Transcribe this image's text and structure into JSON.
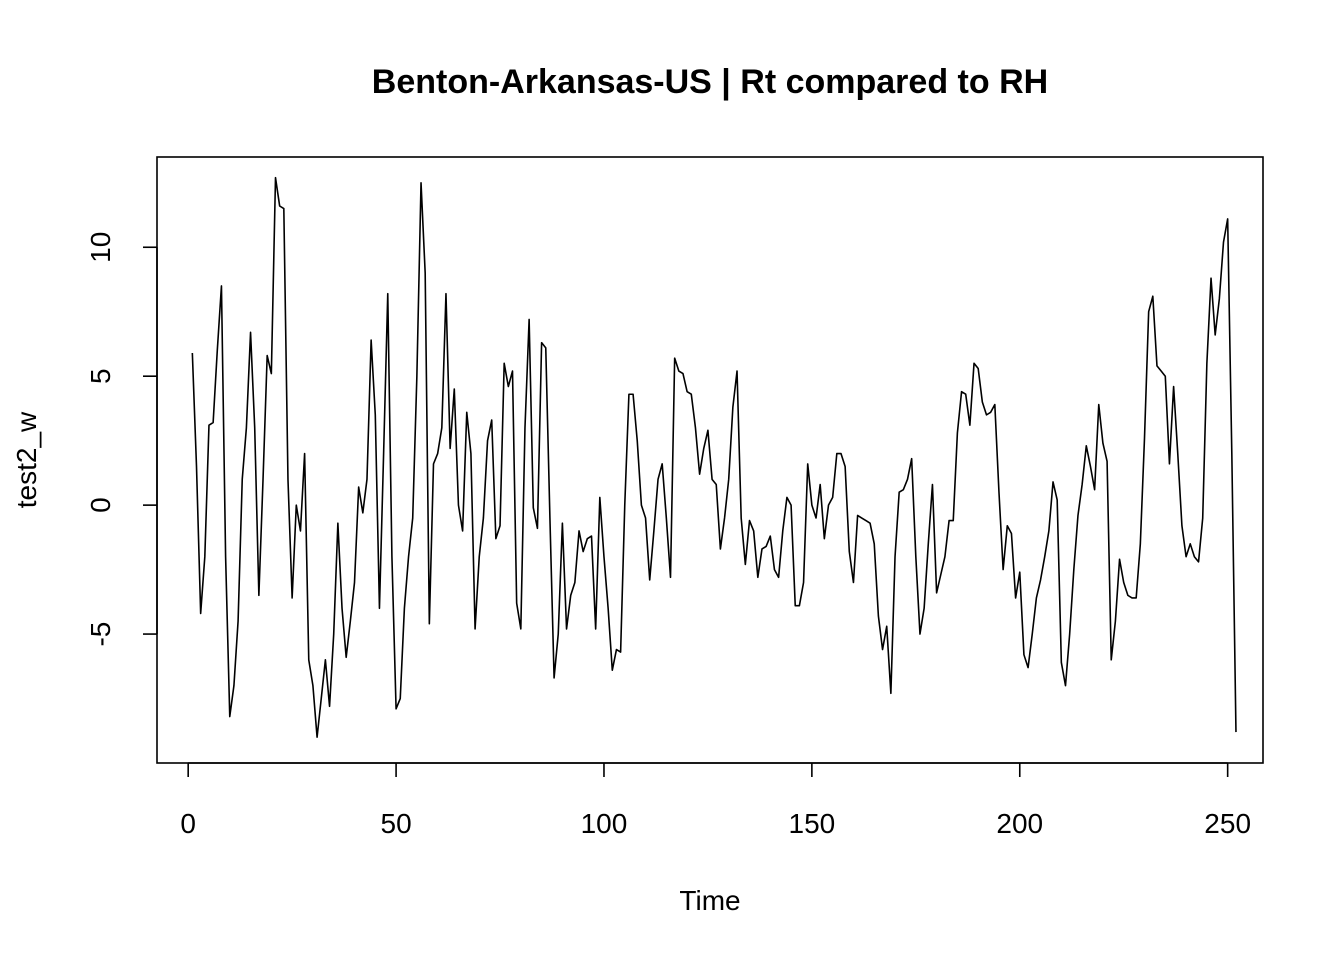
{
  "chart_data": {
    "type": "line",
    "title": "Benton-Arkansas-US | Rt compared to RH",
    "xlabel": "Time",
    "ylabel": "test2_w",
    "xlim": [
      -7.5,
      258.5
    ],
    "ylim": [
      -10,
      13.5
    ],
    "xticks": [
      0,
      50,
      100,
      150,
      200,
      250
    ],
    "yticks": [
      -5,
      0,
      5,
      10
    ],
    "grid": false,
    "series": [
      {
        "values": [
          5.9,
          1.5,
          -4.2,
          -2.0,
          3.1,
          3.2,
          6.0,
          8.5,
          -2.0,
          -8.2,
          -7.0,
          -4.5,
          1.0,
          3.0,
          6.7,
          3.0,
          -3.5,
          1.0,
          5.8,
          5.1,
          12.7,
          11.6,
          11.5,
          1.0,
          -3.6,
          0.0,
          -1.0,
          2.0,
          -6.0,
          -7.0,
          -9.0,
          -7.5,
          -6.0,
          -7.8,
          -5.0,
          -0.7,
          -4.0,
          -5.9,
          -4.5,
          -3.0,
          0.7,
          -0.3,
          1.0,
          6.4,
          3.5,
          -4.0,
          2.0,
          8.2,
          -2.0,
          -7.9,
          -7.5,
          -4.0,
          -2.0,
          -0.5,
          5.0,
          12.5,
          9.0,
          -4.6,
          1.6,
          2.0,
          3.0,
          8.2,
          2.2,
          4.5,
          0.0,
          -1.0,
          3.6,
          2.0,
          -4.8,
          -2.0,
          -0.5,
          2.5,
          3.3,
          -1.3,
          -0.8,
          5.5,
          4.6,
          5.2,
          -3.8,
          -4.8,
          3.0,
          7.2,
          -0.1,
          -0.9,
          6.3,
          6.1,
          -0.5,
          -6.7,
          -5.0,
          -0.7,
          -4.8,
          -3.5,
          -3.0,
          -1.0,
          -1.8,
          -1.3,
          -1.2,
          -4.8,
          0.3,
          -2.0,
          -4.0,
          -6.4,
          -5.6,
          -5.7,
          0.0,
          4.3,
          4.3,
          2.5,
          0.0,
          -0.5,
          -2.9,
          -1.0,
          1.0,
          1.6,
          -0.5,
          -2.8,
          5.7,
          5.2,
          5.1,
          4.4,
          4.3,
          3.0,
          1.2,
          2.2,
          2.9,
          1.0,
          0.8,
          -1.7,
          -0.5,
          1.0,
          3.8,
          5.2,
          -0.5,
          -2.3,
          -0.6,
          -1.0,
          -2.8,
          -1.7,
          -1.6,
          -1.2,
          -2.5,
          -2.8,
          -1.0,
          0.3,
          0.0,
          -3.9,
          -3.9,
          -3.0,
          1.6,
          0.0,
          -0.5,
          0.8,
          -1.3,
          0.0,
          0.3,
          2.0,
          2.0,
          1.5,
          -1.8,
          -3.0,
          -0.4,
          -0.5,
          -0.6,
          -0.7,
          -1.5,
          -4.3,
          -5.6,
          -4.7,
          -7.3,
          -2.0,
          0.5,
          0.6,
          1.0,
          1.8,
          -2.0,
          -5.0,
          -4.0,
          -1.5,
          0.8,
          -3.4,
          -2.7,
          -2.0,
          -0.6,
          -0.6,
          2.8,
          4.4,
          4.3,
          3.1,
          5.5,
          5.3,
          4.0,
          3.5,
          3.6,
          3.9,
          0.5,
          -2.5,
          -0.8,
          -1.1,
          -3.6,
          -2.6,
          -5.8,
          -6.3,
          -5.0,
          -3.6,
          -2.9,
          -2.0,
          -1.0,
          0.9,
          0.2,
          -6.1,
          -7.0,
          -5.0,
          -2.5,
          -0.4,
          0.8,
          2.3,
          1.5,
          0.6,
          3.9,
          2.4,
          1.7,
          -6.0,
          -4.5,
          -2.1,
          -3.0,
          -3.5,
          -3.6,
          -3.6,
          -1.5,
          2.6,
          7.5,
          8.1,
          5.4,
          5.2,
          5.0,
          1.6,
          4.6,
          2.0,
          -0.8,
          -2.0,
          -1.5,
          -2.0,
          -2.2,
          -0.5,
          5.5,
          8.8,
          6.6,
          8.0,
          10.2,
          11.1,
          2.0,
          -8.8
        ]
      }
    ]
  }
}
